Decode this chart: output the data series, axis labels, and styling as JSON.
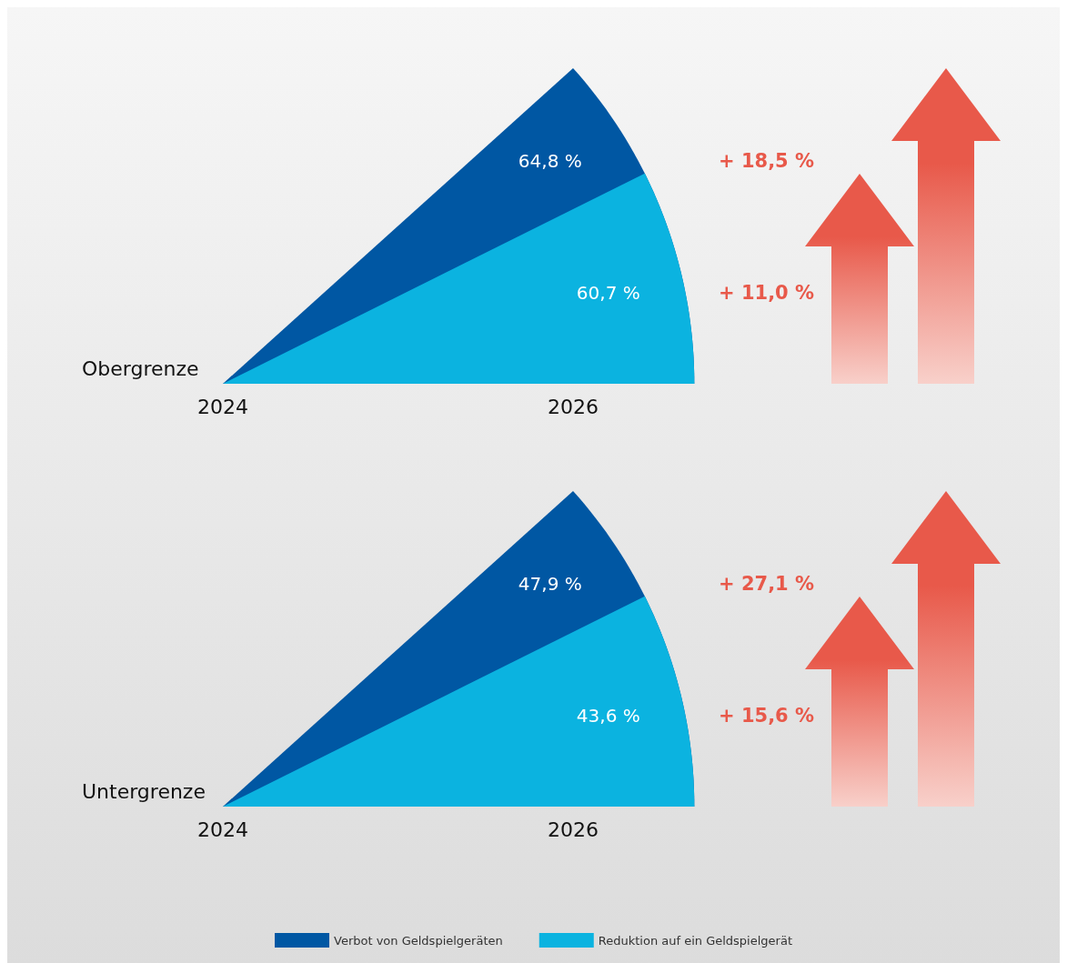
{
  "chart_data": [
    {
      "type": "other",
      "ylabel": "Obergrenze",
      "categories": [
        "2024",
        "2026"
      ],
      "series": [
        {
          "color": "#0057a3",
          "values": [
            null,
            64.8
          ],
          "value_labels": [
            null,
            "64,8 %"
          ]
        },
        {
          "color": "#0bb3e0",
          "values": [
            null,
            60.7
          ],
          "value_labels": [
            null,
            "60,7 %"
          ]
        }
      ],
      "annotations": [
        "+ 18,5 %",
        "+ 11,0 %"
      ]
    },
    {
      "type": "other",
      "ylabel": "Untergrenze",
      "categories": [
        "2024",
        "2026"
      ],
      "legend": "bottom",
      "series": [
        {
          "name": "Verbot von Geldspielgeräten",
          "color": "#0057a3",
          "values": [
            null,
            47.9
          ],
          "value_labels": [
            null,
            "47,9 %"
          ]
        },
        {
          "name": "Reduktion auf ein Geldspielgerät",
          "color": "#0bb3e0",
          "values": [
            null,
            43.6
          ],
          "value_labels": [
            null,
            "43,6 %"
          ]
        }
      ],
      "annotations": [
        "+ 27,1 %",
        "+ 15,6 %"
      ]
    }
  ]
}
